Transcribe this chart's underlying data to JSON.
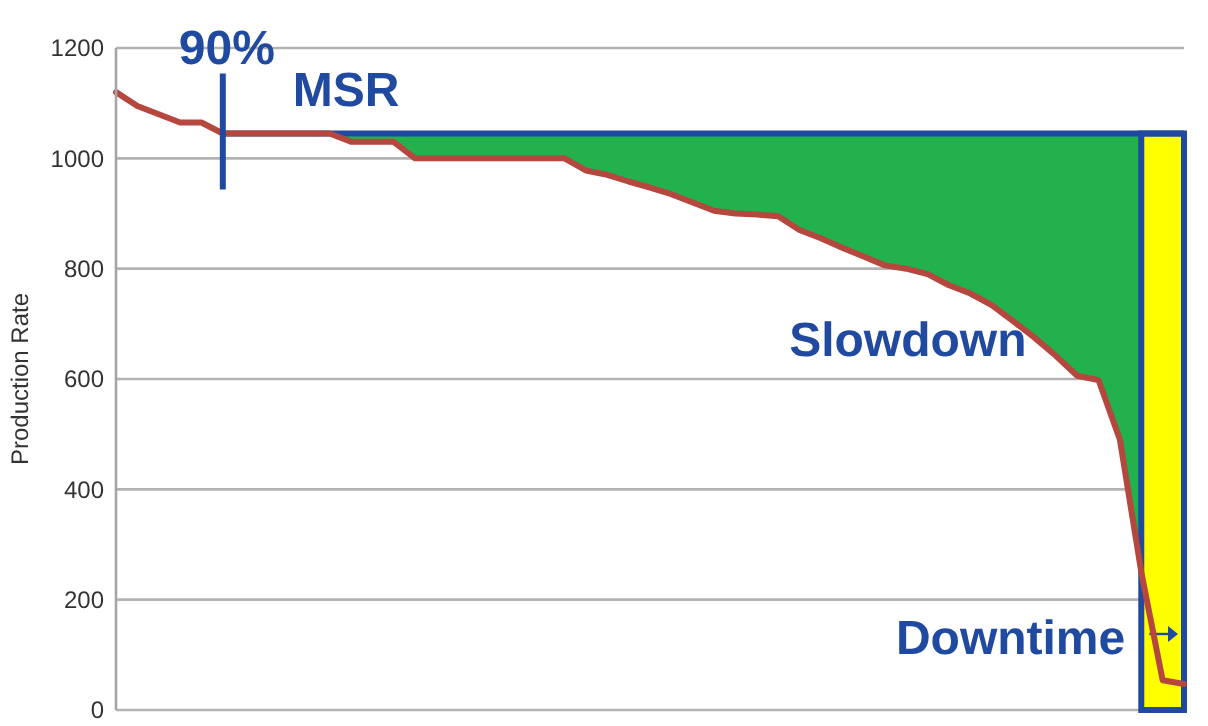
{
  "chart_data": {
    "type": "line",
    "ylabel": "Production Rate",
    "categories": [
      null,
      null,
      null,
      null,
      null,
      null,
      null,
      null,
      null,
      null,
      null,
      null,
      null,
      null,
      null,
      null,
      null,
      null,
      null,
      null,
      null,
      null,
      null,
      null,
      null,
      null,
      null,
      null,
      null,
      null,
      null,
      null,
      null,
      null,
      null,
      null,
      null,
      null,
      null,
      null,
      null,
      null,
      null,
      null,
      null,
      null,
      null,
      null,
      null,
      null,
      null
    ],
    "ylim": [
      0,
      1200
    ],
    "yticks": [
      0,
      200,
      400,
      600,
      800,
      1000,
      1200
    ],
    "grid": "y",
    "tick_labels": "y",
    "series": [
      {
        "color": "#b5473f",
        "values": [
          1120,
          1095,
          1080,
          1065,
          1065,
          1045,
          1045,
          1045,
          1045,
          1045,
          1045,
          1030,
          1030,
          1030,
          1000,
          1000,
          1000,
          1000,
          1000,
          1000,
          1000,
          1000,
          978,
          970,
          958,
          947,
          935,
          920,
          905,
          900,
          898,
          895,
          870,
          855,
          838,
          822,
          806,
          800,
          790,
          770,
          755,
          734,
          705,
          675,
          642,
          606,
          598,
          490,
          250,
          54,
          47
        ]
      },
      {
        "type": "area",
        "color": "#22b14c",
        "values": [
          null,
          null,
          null,
          null,
          null,
          null,
          null,
          null,
          null,
          null,
          1045,
          1045,
          1045,
          1045,
          1045,
          1045,
          1045,
          1045,
          1045,
          1045,
          1045,
          1045,
          1045,
          1045,
          1045,
          1045,
          1045,
          1045,
          1045,
          1045,
          1045,
          1045,
          1045,
          1045,
          1045,
          1045,
          1045,
          1045,
          1045,
          1045,
          1045,
          1045,
          1045,
          1045,
          1045,
          1045,
          1045,
          1045,
          1045,
          null,
          null
        ]
      }
    ],
    "ref_lines": [
      {
        "axis": "y",
        "value": 1045,
        "label": "MSR",
        "color": "#1f4aa0"
      }
    ],
    "annotations": [
      "90%",
      "Downtime",
      "Slowdown"
    ]
  }
}
